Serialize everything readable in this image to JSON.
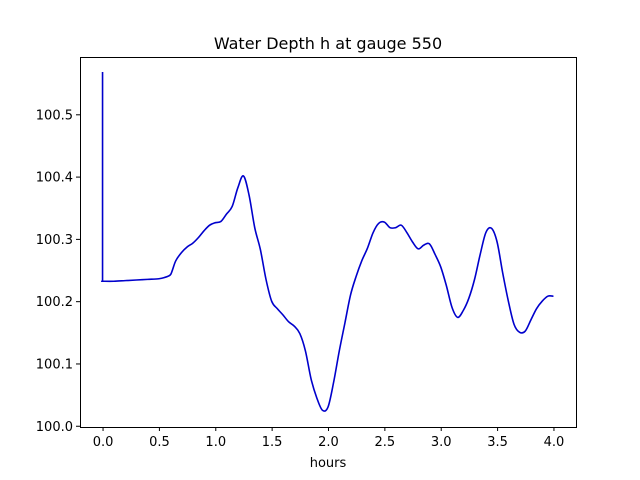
{
  "chart_data": {
    "type": "line",
    "title": "Water Depth h at gauge 550",
    "xlabel": "hours",
    "ylabel": "",
    "xlim": [
      -0.2,
      4.2
    ],
    "ylim": [
      99.998,
      100.592
    ],
    "xticks": [
      0.0,
      0.5,
      1.0,
      1.5,
      2.0,
      2.5,
      3.0,
      3.5,
      4.0
    ],
    "xtick_labels": [
      "0.0",
      "0.5",
      "1.0",
      "1.5",
      "2.0",
      "2.5",
      "3.0",
      "3.5",
      "4.0"
    ],
    "yticks": [
      100.0,
      100.1,
      100.2,
      100.3,
      100.4,
      100.5
    ],
    "ytick_labels": [
      "100.0",
      "100.1",
      "100.2",
      "100.3",
      "100.4",
      "100.5"
    ],
    "grid": false,
    "line_color": "#0000cc",
    "series": [
      {
        "x": [
          0.0,
          0.0,
          0.0,
          0.1,
          0.2,
          0.3,
          0.4,
          0.5,
          0.55,
          0.6,
          0.62,
          0.65,
          0.7,
          0.75,
          0.8,
          0.85,
          0.9,
          0.95,
          1.0,
          1.05,
          1.1,
          1.15,
          1.2,
          1.25,
          1.3,
          1.35,
          1.4,
          1.45,
          1.5,
          1.55,
          1.6,
          1.65,
          1.7,
          1.75,
          1.8,
          1.85,
          1.9,
          1.95,
          2.0,
          2.05,
          2.1,
          2.15,
          2.2,
          2.25,
          2.3,
          2.35,
          2.4,
          2.45,
          2.5,
          2.55,
          2.6,
          2.65,
          2.7,
          2.75,
          2.8,
          2.85,
          2.9,
          2.95,
          3.0,
          3.05,
          3.1,
          3.15,
          3.2,
          3.25,
          3.3,
          3.35,
          3.4,
          3.45,
          3.5,
          3.55,
          3.6,
          3.65,
          3.7,
          3.75,
          3.8,
          3.85,
          3.9,
          3.95,
          4.0
        ],
        "y": [
          100.568,
          100.232,
          100.232,
          100.232,
          100.233,
          100.234,
          100.235,
          100.236,
          100.238,
          100.242,
          100.25,
          100.265,
          100.278,
          100.287,
          100.293,
          100.302,
          100.313,
          100.322,
          100.326,
          100.328,
          100.34,
          100.352,
          100.382,
          100.401,
          100.37,
          100.318,
          100.283,
          100.235,
          100.2,
          100.188,
          100.178,
          100.167,
          100.16,
          100.148,
          100.12,
          100.075,
          100.045,
          100.025,
          100.03,
          100.07,
          100.12,
          100.165,
          100.21,
          100.24,
          100.265,
          100.285,
          100.31,
          100.325,
          100.327,
          100.318,
          100.318,
          100.322,
          100.31,
          100.295,
          100.284,
          100.29,
          100.292,
          100.275,
          100.255,
          100.225,
          100.19,
          100.174,
          100.185,
          100.205,
          100.235,
          100.275,
          100.31,
          100.317,
          100.295,
          100.245,
          100.2,
          100.163,
          100.15,
          100.152,
          100.17,
          100.188,
          100.2,
          100.208,
          100.208
        ]
      }
    ]
  }
}
